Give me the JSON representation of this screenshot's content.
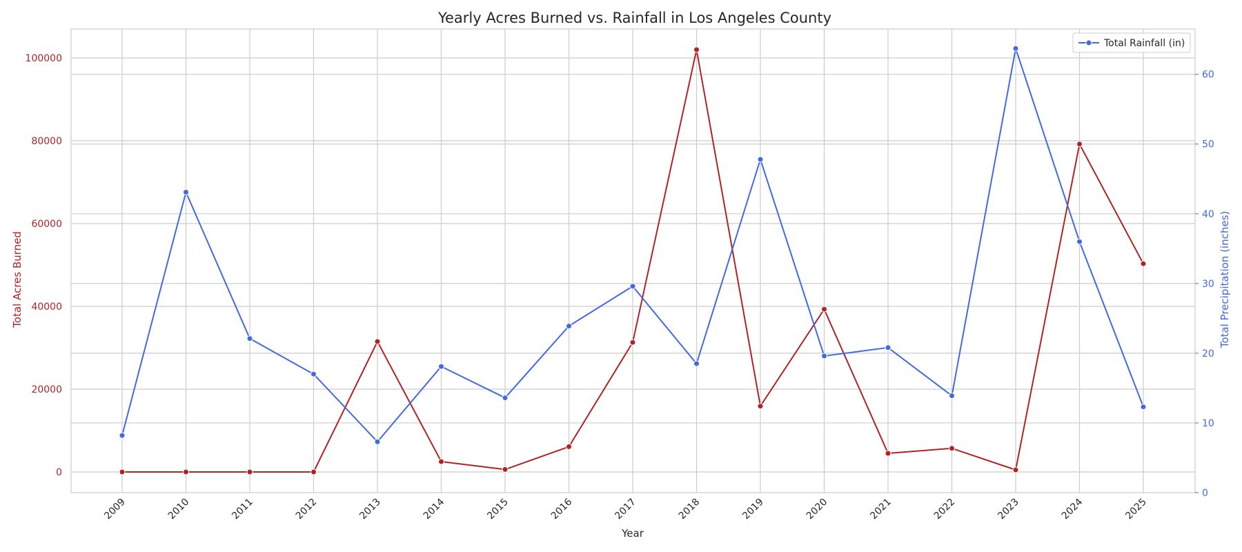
{
  "chart_data": {
    "type": "line",
    "title": "Yearly Acres Burned vs. Rainfall in Los Angeles County",
    "xlabel": "Year",
    "ylabel_left": "Total Acres Burned",
    "ylabel_right": "Total Precipitation (inches)",
    "categories": [
      "2009",
      "2010",
      "2011",
      "2012",
      "2013",
      "2014",
      "2015",
      "2016",
      "2017",
      "2018",
      "2019",
      "2020",
      "2021",
      "2022",
      "2023",
      "2024",
      "2025"
    ],
    "left_axis": {
      "ylim": [
        -5000,
        107000
      ],
      "ticks": [
        0,
        20000,
        40000,
        60000,
        80000,
        100000
      ]
    },
    "right_axis": {
      "ylim": [
        0,
        66.5
      ],
      "ticks": [
        0,
        10,
        20,
        30,
        40,
        50,
        60
      ]
    },
    "series": [
      {
        "axis": "left",
        "color": "#b22222",
        "values": [
          0,
          0,
          0,
          0,
          31500,
          2500,
          600,
          6100,
          31300,
          102000,
          15900,
          39300,
          4500,
          5700,
          500,
          79200,
          50300
        ]
      },
      {
        "name": "Total Rainfall (in)",
        "axis": "right",
        "color": "#4169e1",
        "values": [
          8.2,
          43.1,
          22.1,
          17.0,
          7.3,
          18.1,
          13.6,
          23.9,
          29.6,
          18.5,
          47.8,
          19.6,
          20.8,
          13.9,
          63.7,
          36.0,
          12.3
        ]
      }
    ],
    "grid": true,
    "legend": {
      "position": "top-right"
    }
  }
}
